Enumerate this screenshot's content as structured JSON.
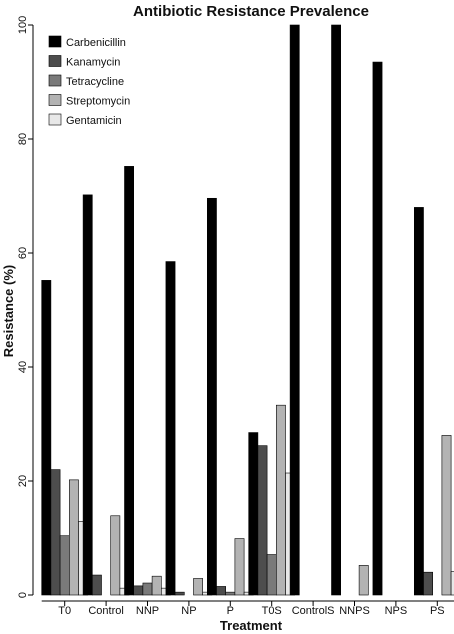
{
  "chart_data": {
    "type": "bar",
    "title": "Antibiotic Resistance Prevalence",
    "xlabel": "Treatment",
    "ylabel": "Resistance (%)",
    "ylim": [
      0,
      100
    ],
    "yticks": [
      0,
      20,
      40,
      60,
      80,
      100
    ],
    "grid": false,
    "legend_position": "top-left",
    "categories": [
      "T0",
      "Control",
      "NNP",
      "NP",
      "P",
      "T0S",
      "ControlS",
      "NNPS",
      "NPS",
      "PS"
    ],
    "series": [
      {
        "name": "Carbenicillin",
        "color": "#000000",
        "values": [
          55.2,
          70.2,
          75.2,
          58.5,
          69.6,
          28.5,
          100,
          100,
          93.5,
          68.0
        ]
      },
      {
        "name": "Kanamycin",
        "color": "#4d4d4d",
        "values": [
          22.0,
          3.5,
          1.6,
          0.5,
          1.5,
          26.2,
          0,
          0,
          0,
          4.0
        ]
      },
      {
        "name": "Tetracycline",
        "color": "#7a7a7a",
        "values": [
          10.4,
          0,
          2.1,
          0,
          0.5,
          7.1,
          0,
          0,
          0,
          0
        ]
      },
      {
        "name": "Streptomycin",
        "color": "#b3b3b3",
        "values": [
          20.2,
          13.9,
          3.3,
          2.9,
          9.9,
          33.3,
          0,
          5.2,
          0,
          28.0
        ]
      },
      {
        "name": "Gentamicin",
        "color": "#e8e8e8",
        "values": [
          12.9,
          1.2,
          1.2,
          0.5,
          0.5,
          21.4,
          0,
          0,
          0,
          4.1
        ]
      }
    ]
  }
}
